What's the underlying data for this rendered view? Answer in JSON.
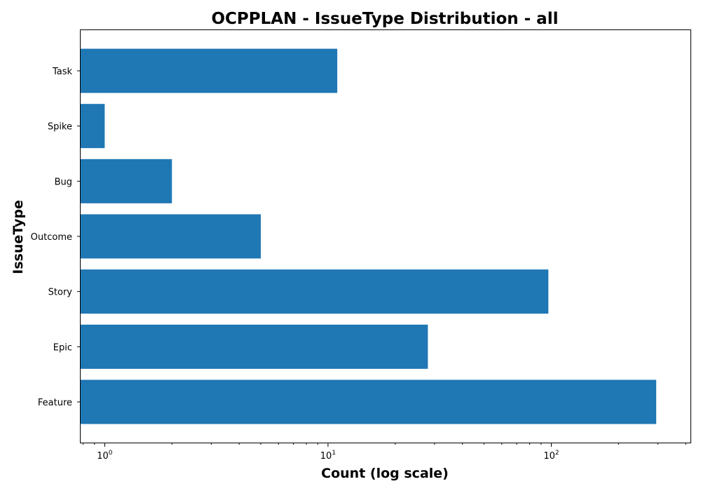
{
  "chart_data": {
    "type": "bar",
    "orientation": "horizontal",
    "title": "OCPPLAN - IssueType Distribution - all",
    "xlabel": "Count (log scale)",
    "ylabel": "IssueType",
    "xscale": "log",
    "xlim": [
      0.78,
      420
    ],
    "categories": [
      "Feature",
      "Epic",
      "Story",
      "Outcome",
      "Bug",
      "Spike",
      "Task"
    ],
    "values": [
      295,
      28,
      97,
      5,
      2,
      1,
      11
    ],
    "x_ticks": [
      {
        "value": 1,
        "base": "10",
        "exp": "0"
      },
      {
        "value": 10,
        "base": "10",
        "exp": "1"
      },
      {
        "value": 100,
        "base": "10",
        "exp": "2"
      }
    ],
    "grid": false,
    "legend": "none",
    "bar_color": "#1f77b4"
  }
}
